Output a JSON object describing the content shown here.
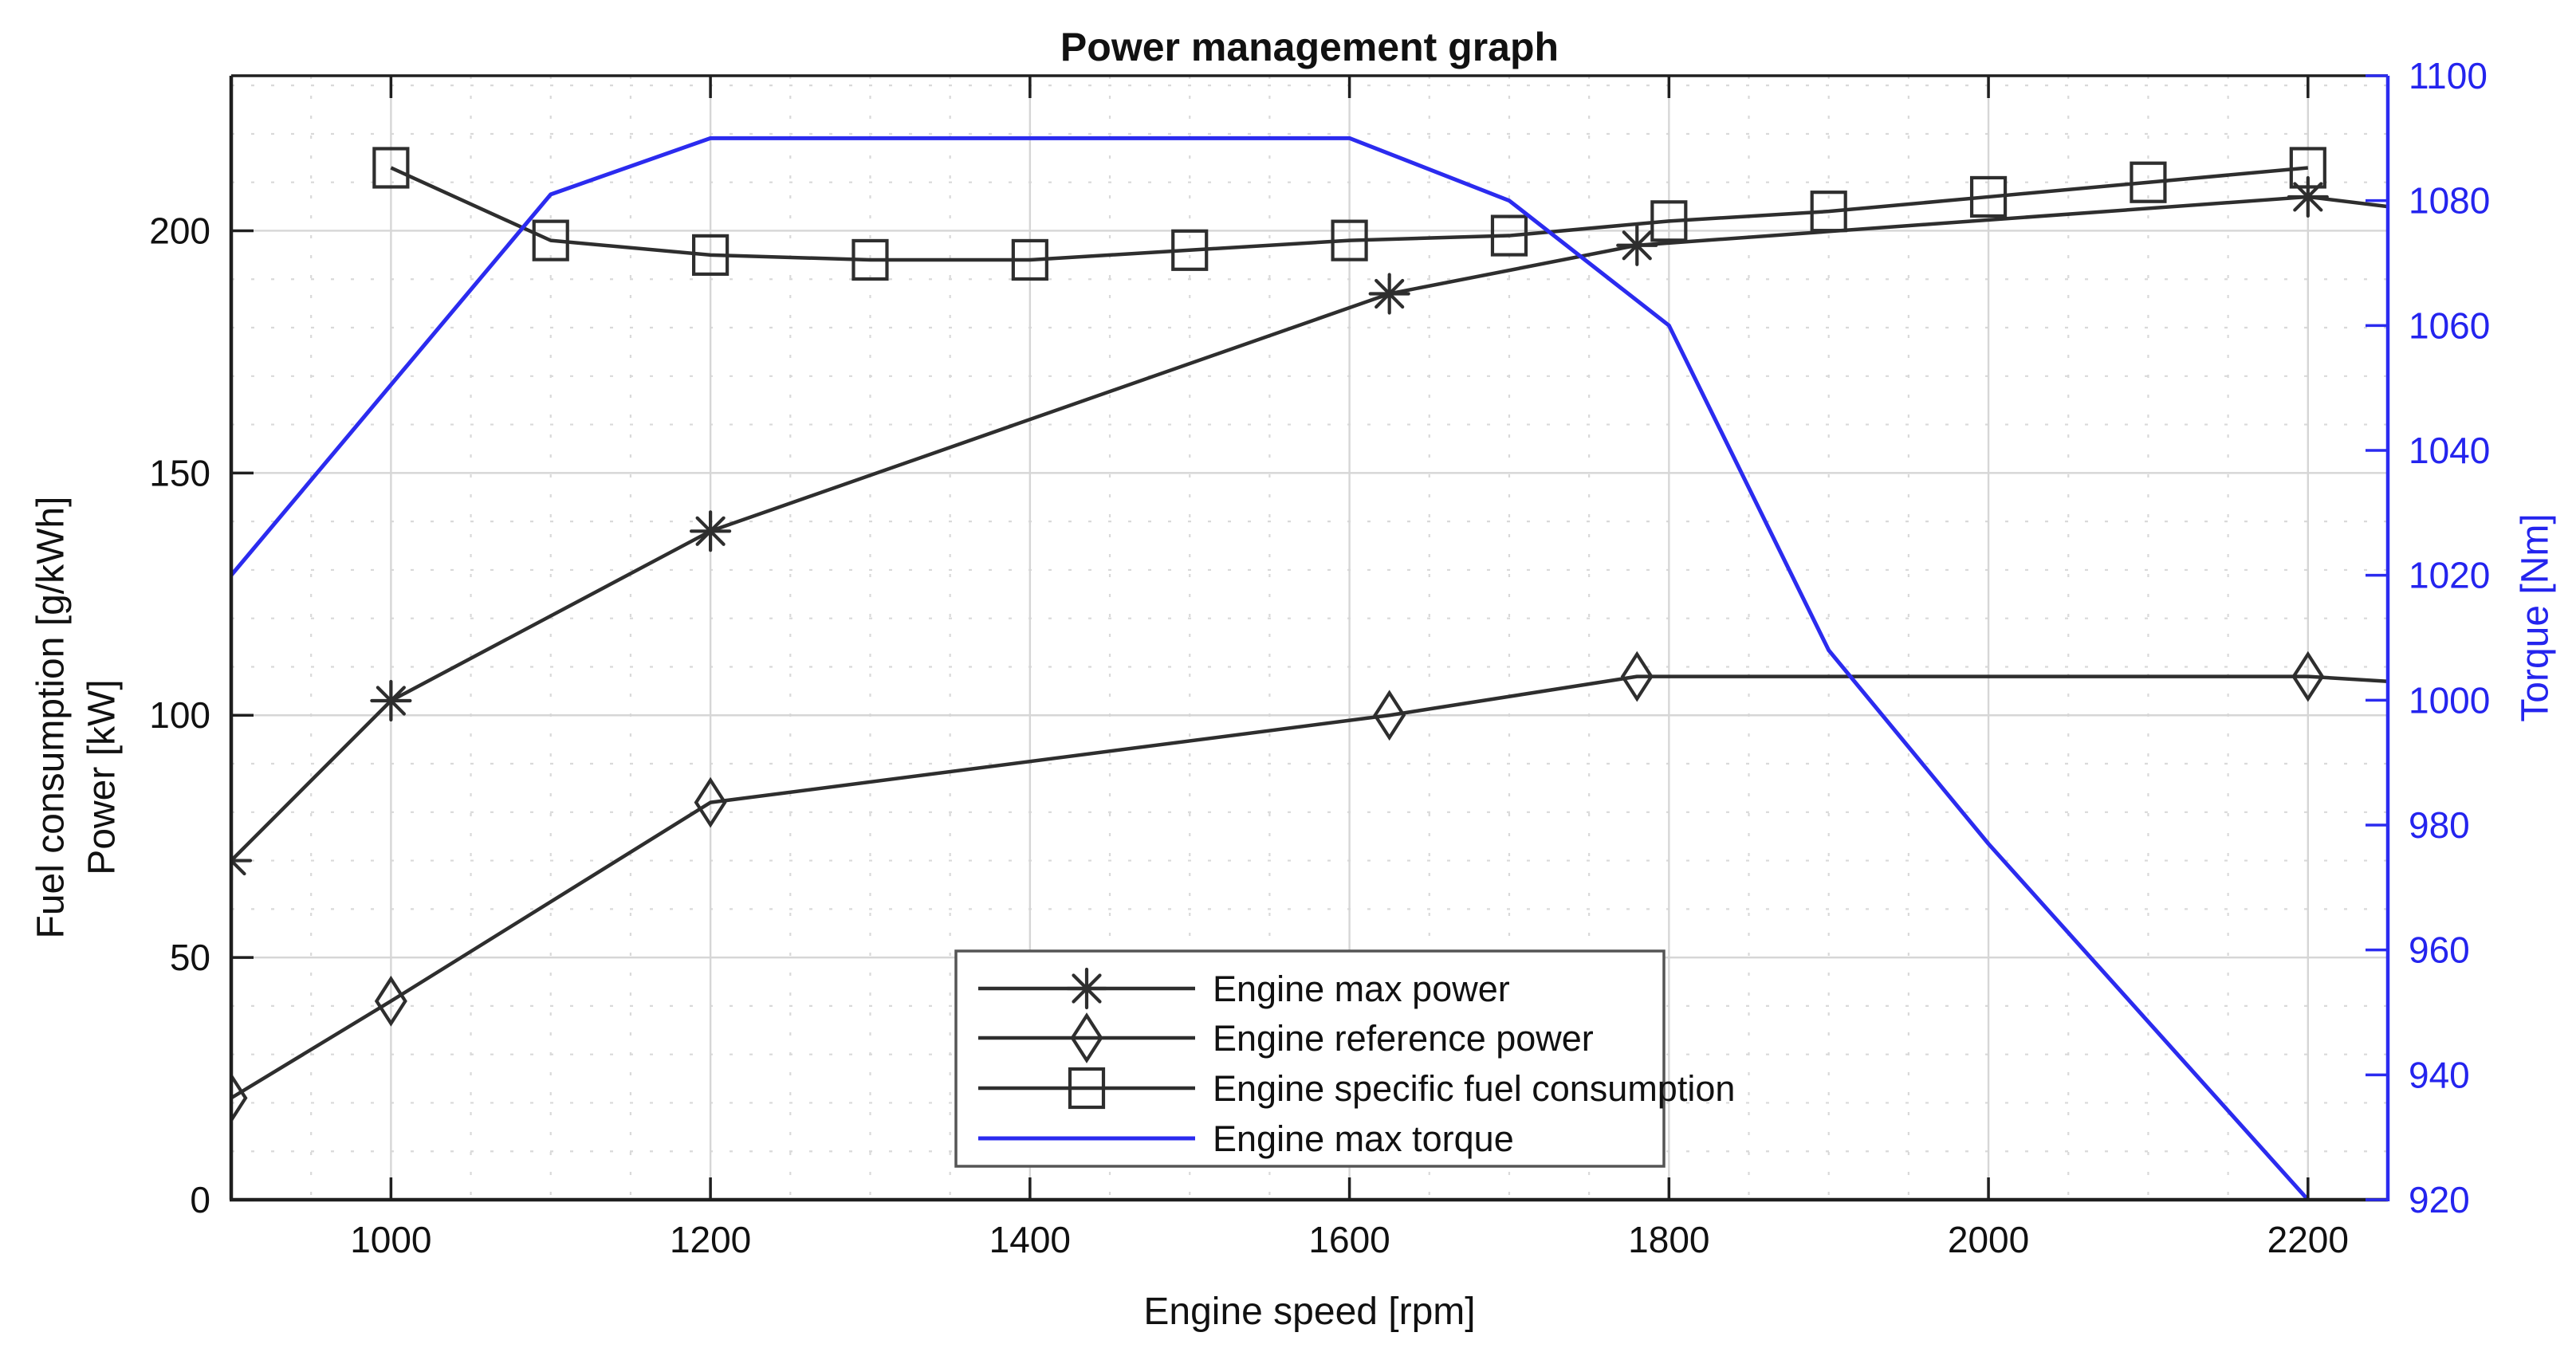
{
  "chart_data": {
    "type": "line",
    "title": "Power management graph",
    "xlabel": "Engine speed [rpm]",
    "ylabel_left": [
      "Fuel consumption [g/kWh]",
      "Power [kW]"
    ],
    "ylabel_right": "Torque [Nm]",
    "xlim": [
      900,
      2250
    ],
    "ylim_left": [
      0,
      232
    ],
    "ylim_right": [
      920,
      1100
    ],
    "x_ticks": [
      1000,
      1200,
      1400,
      1600,
      1800,
      2000,
      2200
    ],
    "y_ticks_left": [
      0,
      50,
      100,
      150,
      200
    ],
    "y_ticks_right": [
      920,
      940,
      960,
      980,
      1000,
      1020,
      1040,
      1060,
      1080,
      1100
    ],
    "x_minor_step": 50,
    "y_minor_step_left": 10,
    "grid": "major solid, minor dotted",
    "legend_position": "inside bottom-center",
    "colors": {
      "black_series": "#2e2e2e",
      "blue_series": "#2b2bef",
      "blue_text": "#2424ee",
      "axis": "#1f1f1f",
      "grid_major": "#d6d6d6",
      "grid_minor": "#d9d9d9",
      "legend_border": "#555555",
      "background": "#ffffff",
      "text": "#111111"
    },
    "series": [
      {
        "name": "Engine max power",
        "id": "engine-max-power",
        "axis": "left",
        "marker": "asterisk",
        "color": "#2e2e2e",
        "x": [
          900,
          1000,
          1200,
          1625,
          1780,
          2200,
          2250
        ],
        "y": [
          70,
          103,
          138,
          187,
          197,
          207,
          205
        ],
        "marker_points": 6
      },
      {
        "name": "Engine reference power",
        "id": "engine-reference-power",
        "axis": "left",
        "marker": "diamond",
        "color": "#2e2e2e",
        "x": [
          900,
          1000,
          1200,
          1625,
          1780,
          2200,
          2250
        ],
        "y": [
          21,
          41,
          82,
          100,
          108,
          108,
          107
        ],
        "marker_points": 6
      },
      {
        "name": "Engine specific fuel consumption",
        "id": "engine-specific-fuel-consumption",
        "axis": "left",
        "marker": "square",
        "color": "#2e2e2e",
        "x": [
          1000,
          1100,
          1200,
          1300,
          1400,
          1500,
          1600,
          1700,
          1800,
          1900,
          2000,
          2100,
          2200
        ],
        "y": [
          213,
          198,
          195,
          194,
          194,
          196,
          198,
          199,
          202,
          204,
          207,
          210,
          213
        ],
        "marker_points": 13
      },
      {
        "name": "Engine max torque",
        "id": "engine-max-torque",
        "axis": "right",
        "marker": "none",
        "color": "#2b2bef",
        "x": [
          900,
          1100,
          1200,
          1600,
          1700,
          1800,
          1900,
          2000,
          2200
        ],
        "y": [
          1020,
          1081,
          1090,
          1090,
          1080,
          1060,
          1008,
          977,
          920
        ],
        "marker_points": 0
      }
    ],
    "legend": [
      "Engine max power",
      "Engine reference power",
      "Engine specific fuel consumption",
      "Engine max torque"
    ]
  }
}
